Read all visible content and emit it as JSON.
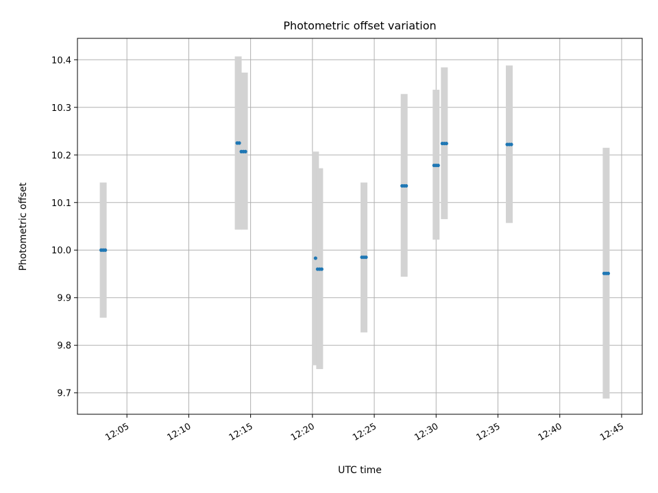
{
  "chart_data": {
    "type": "scatter",
    "title": "Photometric offset variation",
    "xlabel": "UTC time",
    "ylabel": "Photometric offset",
    "x_unit": "time (HH:MM)",
    "xlim": [
      "12:01:00",
      "12:46:40"
    ],
    "ylim": [
      9.655,
      10.445
    ],
    "x_ticks": [
      "12:05",
      "12:10",
      "12:15",
      "12:20",
      "12:25",
      "12:30",
      "12:35",
      "12:40",
      "12:45"
    ],
    "y_ticks": [
      9.7,
      9.8,
      9.9,
      10.0,
      10.1,
      10.2,
      10.3,
      10.4
    ],
    "y_tick_labels": [
      "9.7",
      "9.8",
      "9.9",
      "10.0",
      "10.1",
      "10.2",
      "10.3",
      "10.4"
    ],
    "grid": true,
    "band_color": "#d3d3d3",
    "point_color": "#1f77b4",
    "groups": [
      {
        "time": "12:03:05",
        "value": 10.0,
        "err_low": 9.858,
        "err_high": 10.142,
        "points": [
          {
            "time": "12:02:55",
            "value": 10.0
          },
          {
            "time": "12:03:05",
            "value": 10.0
          },
          {
            "time": "12:03:15",
            "value": 10.0
          }
        ]
      },
      {
        "time": "12:14:00",
        "value": 10.225,
        "err_low": 10.043,
        "err_high": 10.407,
        "points": [
          {
            "time": "12:13:55",
            "value": 10.225
          },
          {
            "time": "12:14:05",
            "value": 10.225
          }
        ]
      },
      {
        "time": "12:14:30",
        "value": 10.207,
        "err_low": 10.043,
        "err_high": 10.373,
        "points": [
          {
            "time": "12:14:15",
            "value": 10.207
          },
          {
            "time": "12:14:25",
            "value": 10.207
          },
          {
            "time": "12:14:35",
            "value": 10.207
          }
        ]
      },
      {
        "time": "12:20:15",
        "value": 9.983,
        "err_low": 9.758,
        "err_high": 10.207,
        "points": [
          {
            "time": "12:20:15",
            "value": 9.983
          }
        ]
      },
      {
        "time": "12:20:35",
        "value": 9.96,
        "err_low": 9.75,
        "err_high": 10.172,
        "points": [
          {
            "time": "12:20:25",
            "value": 9.96
          },
          {
            "time": "12:20:35",
            "value": 9.96
          },
          {
            "time": "12:20:45",
            "value": 9.96
          }
        ]
      },
      {
        "time": "12:24:10",
        "value": 9.985,
        "err_low": 9.827,
        "err_high": 10.142,
        "points": [
          {
            "time": "12:24:00",
            "value": 9.985
          },
          {
            "time": "12:24:10",
            "value": 9.985
          },
          {
            "time": "12:24:20",
            "value": 9.985
          }
        ]
      },
      {
        "time": "12:27:25",
        "value": 10.135,
        "err_low": 9.944,
        "err_high": 10.328,
        "points": [
          {
            "time": "12:27:15",
            "value": 10.135
          },
          {
            "time": "12:27:25",
            "value": 10.135
          },
          {
            "time": "12:27:35",
            "value": 10.135
          }
        ]
      },
      {
        "time": "12:30:00",
        "value": 10.178,
        "err_low": 10.022,
        "err_high": 10.337,
        "points": [
          {
            "time": "12:29:50",
            "value": 10.178
          },
          {
            "time": "12:30:00",
            "value": 10.178
          },
          {
            "time": "12:30:10",
            "value": 10.178
          }
        ]
      },
      {
        "time": "12:30:40",
        "value": 10.224,
        "err_low": 10.065,
        "err_high": 10.384,
        "points": [
          {
            "time": "12:30:30",
            "value": 10.224
          },
          {
            "time": "12:30:40",
            "value": 10.224
          },
          {
            "time": "12:30:50",
            "value": 10.224
          }
        ]
      },
      {
        "time": "12:35:55",
        "value": 10.222,
        "err_low": 10.057,
        "err_high": 10.388,
        "points": [
          {
            "time": "12:35:45",
            "value": 10.222
          },
          {
            "time": "12:35:55",
            "value": 10.222
          },
          {
            "time": "12:36:05",
            "value": 10.222
          }
        ]
      },
      {
        "time": "12:43:45",
        "value": 9.951,
        "err_low": 9.688,
        "err_high": 10.215,
        "points": [
          {
            "time": "12:43:35",
            "value": 9.951
          },
          {
            "time": "12:43:45",
            "value": 9.951
          },
          {
            "time": "12:43:55",
            "value": 9.951
          }
        ]
      }
    ]
  }
}
